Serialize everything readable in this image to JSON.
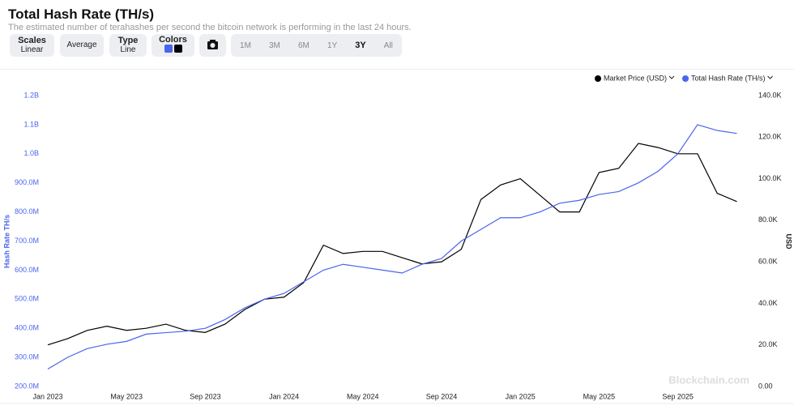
{
  "header": {
    "title": "Total Hash Rate (TH/s)",
    "subtitle": "The estimated number of terahashes per second the bitcoin network is performing in the last 24 hours."
  },
  "controls": {
    "scales": {
      "label": "Scales",
      "value": "Linear"
    },
    "average": "Average",
    "type": {
      "label": "Type",
      "value": "Line"
    },
    "colors": "Colors",
    "ranges": [
      "1M",
      "3M",
      "6M",
      "1Y",
      "3Y",
      "All"
    ],
    "active_range": "3Y"
  },
  "chart_data": {
    "type": "line",
    "x": [
      "2023-01",
      "2023-02",
      "2023-03",
      "2023-04",
      "2023-05",
      "2023-06",
      "2023-07",
      "2023-08",
      "2023-09",
      "2023-10",
      "2023-11",
      "2023-12",
      "2024-01",
      "2024-02",
      "2024-03",
      "2024-04",
      "2024-05",
      "2024-06",
      "2024-07",
      "2024-08",
      "2024-09",
      "2024-10",
      "2024-11",
      "2024-12",
      "2025-01",
      "2025-02",
      "2025-03",
      "2025-04",
      "2025-05",
      "2025-06",
      "2025-07",
      "2025-08",
      "2025-09",
      "2025-10",
      "2025-11",
      "2025-12"
    ],
    "xticks": [
      {
        "value": "2023-01",
        "label": "Jan 2023"
      },
      {
        "value": "2023-05",
        "label": "May 2023"
      },
      {
        "value": "2023-09",
        "label": "Sep 2023"
      },
      {
        "value": "2024-01",
        "label": "Jan 2024"
      },
      {
        "value": "2024-05",
        "label": "May 2024"
      },
      {
        "value": "2024-09",
        "label": "Sep 2024"
      },
      {
        "value": "2025-01",
        "label": "Jan 2025"
      },
      {
        "value": "2025-05",
        "label": "May 2025"
      },
      {
        "value": "2025-09",
        "label": "Sep 2025"
      }
    ],
    "ylim": [
      200000000,
      1200000000
    ],
    "yticks": [
      {
        "value": 200000000,
        "label": "200.0M"
      },
      {
        "value": 300000000,
        "label": "300.0M"
      },
      {
        "value": 400000000,
        "label": "400.0M"
      },
      {
        "value": 500000000,
        "label": "500.0M"
      },
      {
        "value": 600000000,
        "label": "600.0M"
      },
      {
        "value": 700000000,
        "label": "700.0M"
      },
      {
        "value": 800000000,
        "label": "800.0M"
      },
      {
        "value": 900000000,
        "label": "900.0M"
      },
      {
        "value": 1000000000,
        "label": "1.0B"
      },
      {
        "value": 1100000000,
        "label": "1.1B"
      },
      {
        "value": 1200000000,
        "label": "1.2B"
      }
    ],
    "y2lim": [
      0,
      140000
    ],
    "y2ticks": [
      {
        "value": 0,
        "label": "0.00"
      },
      {
        "value": 20000,
        "label": "20.0K"
      },
      {
        "value": 40000,
        "label": "40.0K"
      },
      {
        "value": 60000,
        "label": "60.0K"
      },
      {
        "value": 80000,
        "label": "80.0K"
      },
      {
        "value": 100000,
        "label": "100.0K"
      },
      {
        "value": 120000,
        "label": "120.0K"
      },
      {
        "value": 140000,
        "label": "140.0K"
      }
    ],
    "ylabel": "Hash Rate TH/s",
    "y2label": "USD",
    "series": [
      {
        "name": "Market Price (USD)",
        "color": "#000000",
        "axis": "y2",
        "values": [
          20000,
          23000,
          27000,
          29000,
          27000,
          28000,
          30000,
          27000,
          26000,
          30000,
          37000,
          42000,
          43000,
          50000,
          68000,
          64000,
          65000,
          65000,
          62000,
          59000,
          60000,
          66000,
          90000,
          97000,
          100000,
          92000,
          84000,
          84000,
          103000,
          105000,
          117000,
          115000,
          112000,
          112000,
          93000,
          89000
        ]
      },
      {
        "name": "Total Hash Rate (TH/s)",
        "color": "#4a64ec",
        "values": [
          260000000,
          300000000,
          330000000,
          345000000,
          355000000,
          380000000,
          385000000,
          390000000,
          400000000,
          430000000,
          470000000,
          500000000,
          520000000,
          560000000,
          600000000,
          620000000,
          610000000,
          600000000,
          590000000,
          620000000,
          640000000,
          700000000,
          740000000,
          780000000,
          780000000,
          800000000,
          830000000,
          840000000,
          860000000,
          870000000,
          900000000,
          940000000,
          1000000000,
          1100000000,
          1080000000,
          1070000000
        ]
      }
    ],
    "watermark": "Blockchain.com"
  }
}
